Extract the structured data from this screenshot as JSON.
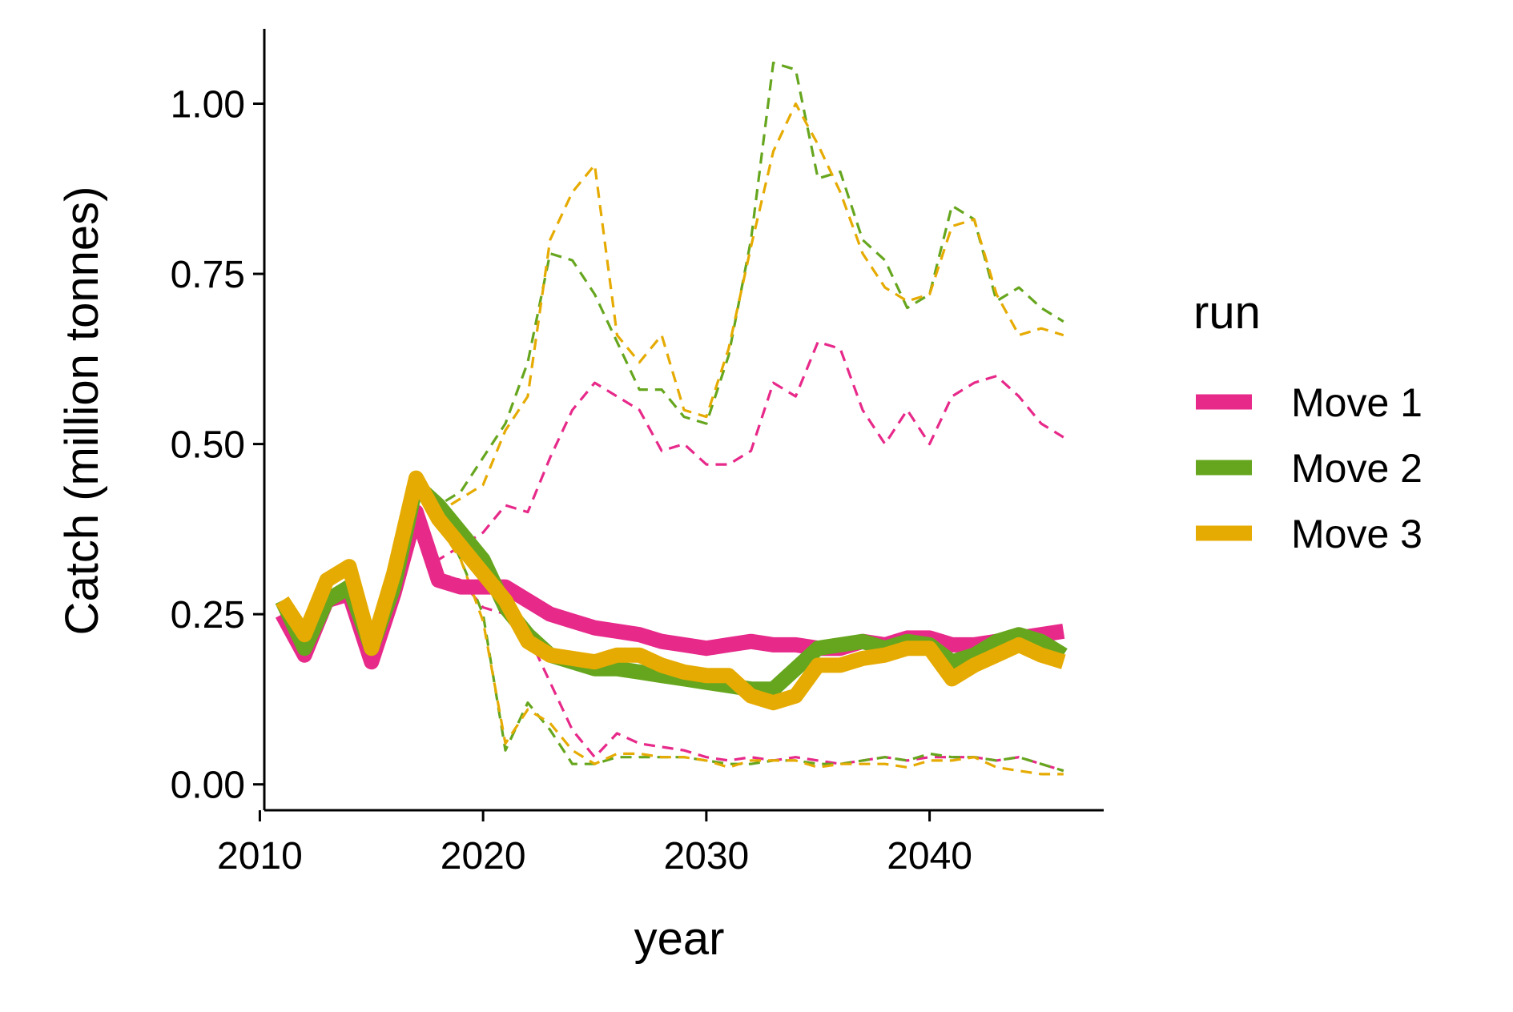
{
  "chart_data": {
    "type": "line",
    "xlabel": "year",
    "ylabel": "Catch (million tonnes)",
    "xlim": [
      2010.2,
      2047.8
    ],
    "ylim": [
      -0.038,
      1.11
    ],
    "x_ticks": [
      2010,
      2020,
      2030,
      2040
    ],
    "x_tick_labels": [
      "2010",
      "2020",
      "2030",
      "2040"
    ],
    "y_ticks": [
      0,
      0.25,
      0.5,
      0.75,
      1.0
    ],
    "y_tick_labels": [
      "0.00",
      "0.25",
      "0.50",
      "0.75",
      "1.00"
    ],
    "grid": false,
    "legend": {
      "title": "run",
      "position": "right",
      "entries": [
        "Move 1",
        "Move 2",
        "Move 3"
      ]
    },
    "series": [
      {
        "name": "Move 1",
        "color": "#E7298A",
        "x": [
          2011,
          2012,
          2013,
          2014,
          2015,
          2016,
          2017,
          2018,
          2019,
          2020,
          2021,
          2022,
          2023,
          2024,
          2025,
          2026,
          2027,
          2028,
          2029,
          2030,
          2031,
          2032,
          2033,
          2034,
          2035,
          2036,
          2037,
          2038,
          2039,
          2040,
          2041,
          2042,
          2043,
          2044,
          2045,
          2046
        ],
        "median": [
          0.25,
          0.19,
          0.27,
          0.28,
          0.18,
          0.28,
          0.4,
          0.3,
          0.29,
          0.29,
          0.29,
          0.27,
          0.25,
          0.24,
          0.23,
          0.225,
          0.22,
          0.21,
          0.205,
          0.2,
          0.205,
          0.21,
          0.205,
          0.205,
          0.2,
          0.2,
          0.21,
          0.205,
          0.215,
          0.215,
          0.205,
          0.205,
          0.21,
          0.215,
          0.22,
          0.225
        ],
        "lower": [
          0.25,
          0.19,
          0.27,
          0.28,
          0.18,
          0.28,
          0.4,
          0.31,
          0.3,
          0.26,
          0.25,
          0.22,
          0.15,
          0.08,
          0.04,
          0.075,
          0.06,
          0.055,
          0.05,
          0.04,
          0.035,
          0.04,
          0.035,
          0.04,
          0.035,
          0.03,
          0.035,
          0.04,
          0.035,
          0.04,
          0.04,
          0.04,
          0.035,
          0.04,
          0.03,
          0.02
        ],
        "upper": [
          0.25,
          0.19,
          0.27,
          0.28,
          0.18,
          0.28,
          0.4,
          0.33,
          0.35,
          0.37,
          0.41,
          0.4,
          0.48,
          0.55,
          0.59,
          0.57,
          0.55,
          0.49,
          0.5,
          0.47,
          0.47,
          0.49,
          0.59,
          0.57,
          0.65,
          0.64,
          0.55,
          0.5,
          0.55,
          0.5,
          0.57,
          0.59,
          0.6,
          0.57,
          0.53,
          0.51
        ]
      },
      {
        "name": "Move 2",
        "color": "#66A61E",
        "x": [
          2011,
          2012,
          2013,
          2014,
          2015,
          2016,
          2017,
          2018,
          2019,
          2020,
          2021,
          2022,
          2023,
          2024,
          2025,
          2026,
          2027,
          2028,
          2029,
          2030,
          2031,
          2032,
          2033,
          2034,
          2035,
          2036,
          2037,
          2038,
          2039,
          2040,
          2041,
          2042,
          2043,
          2044,
          2045,
          2046
        ],
        "median": [
          0.27,
          0.2,
          0.27,
          0.29,
          0.2,
          0.29,
          0.44,
          0.41,
          0.37,
          0.33,
          0.26,
          0.22,
          0.19,
          0.18,
          0.17,
          0.17,
          0.165,
          0.16,
          0.155,
          0.15,
          0.145,
          0.14,
          0.14,
          0.17,
          0.2,
          0.205,
          0.21,
          0.2,
          0.21,
          0.205,
          0.18,
          0.19,
          0.21,
          0.22,
          0.21,
          0.19
        ],
        "lower": [
          0.27,
          0.2,
          0.27,
          0.29,
          0.2,
          0.29,
          0.44,
          0.4,
          0.33,
          0.25,
          0.05,
          0.12,
          0.08,
          0.03,
          0.03,
          0.04,
          0.04,
          0.04,
          0.04,
          0.035,
          0.03,
          0.03,
          0.035,
          0.035,
          0.03,
          0.03,
          0.035,
          0.04,
          0.035,
          0.045,
          0.04,
          0.04,
          0.035,
          0.04,
          0.03,
          0.02
        ],
        "upper": [
          0.27,
          0.2,
          0.27,
          0.29,
          0.2,
          0.29,
          0.44,
          0.41,
          0.43,
          0.48,
          0.53,
          0.62,
          0.78,
          0.77,
          0.72,
          0.65,
          0.58,
          0.58,
          0.54,
          0.53,
          0.63,
          0.8,
          1.06,
          1.05,
          0.89,
          0.9,
          0.8,
          0.77,
          0.7,
          0.72,
          0.85,
          0.83,
          0.71,
          0.73,
          0.7,
          0.68
        ]
      },
      {
        "name": "Move 3",
        "color": "#E6AB02",
        "x": [
          2011,
          2012,
          2013,
          2014,
          2015,
          2016,
          2017,
          2018,
          2019,
          2020,
          2021,
          2022,
          2023,
          2024,
          2025,
          2026,
          2027,
          2028,
          2029,
          2030,
          2031,
          2032,
          2033,
          2034,
          2035,
          2036,
          2037,
          2038,
          2039,
          2040,
          2041,
          2042,
          2043,
          2044,
          2045,
          2046
        ],
        "median": [
          0.27,
          0.22,
          0.3,
          0.32,
          0.2,
          0.31,
          0.45,
          0.39,
          0.35,
          0.31,
          0.27,
          0.21,
          0.19,
          0.185,
          0.18,
          0.19,
          0.19,
          0.175,
          0.165,
          0.16,
          0.16,
          0.13,
          0.12,
          0.13,
          0.175,
          0.175,
          0.185,
          0.19,
          0.2,
          0.2,
          0.155,
          0.175,
          0.19,
          0.205,
          0.19,
          0.18
        ],
        "lower": [
          0.27,
          0.22,
          0.3,
          0.32,
          0.2,
          0.31,
          0.45,
          0.38,
          0.33,
          0.24,
          0.06,
          0.11,
          0.09,
          0.05,
          0.03,
          0.045,
          0.045,
          0.04,
          0.04,
          0.035,
          0.025,
          0.035,
          0.035,
          0.035,
          0.025,
          0.03,
          0.03,
          0.03,
          0.025,
          0.035,
          0.035,
          0.04,
          0.025,
          0.02,
          0.015,
          0.015
        ],
        "upper": [
          0.27,
          0.22,
          0.3,
          0.32,
          0.2,
          0.31,
          0.45,
          0.4,
          0.42,
          0.44,
          0.52,
          0.57,
          0.8,
          0.87,
          0.91,
          0.66,
          0.62,
          0.66,
          0.55,
          0.54,
          0.64,
          0.79,
          0.93,
          1.0,
          0.94,
          0.87,
          0.78,
          0.73,
          0.71,
          0.72,
          0.82,
          0.83,
          0.72,
          0.66,
          0.67,
          0.66
        ]
      }
    ]
  }
}
